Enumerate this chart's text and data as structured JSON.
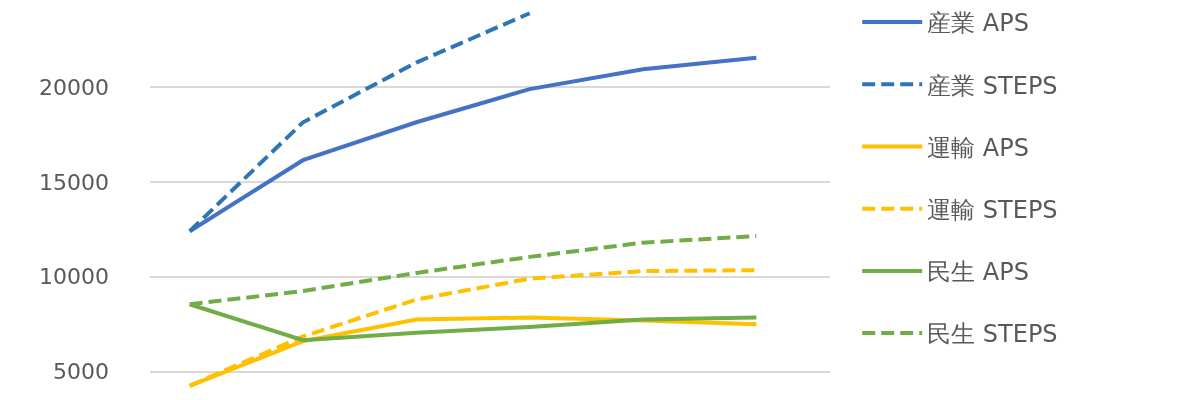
{
  "chart_data": {
    "type": "line",
    "categories": [
      null,
      null,
      null,
      null,
      null,
      null
    ],
    "ylim": [
      3500,
      24600
    ],
    "yticks": [
      5000,
      10000,
      15000,
      20000
    ],
    "grid": "y",
    "legend": "right",
    "tick_labels": "y",
    "marker": "none",
    "series": [
      {
        "name": "産業 APS",
        "color": "#4472c4",
        "line_style": "solid",
        "values": [
          12400,
          16150,
          18150,
          19900,
          20950,
          21550
        ]
      },
      {
        "name": "産業 STEPS",
        "color": "#2e75b6",
        "line_style": "dashed",
        "values": [
          12400,
          18150,
          21300,
          23900,
          null,
          null
        ]
      },
      {
        "name": "運輸 APS",
        "color": "#ffc000",
        "line_style": "solid",
        "values": [
          4250,
          6600,
          7750,
          7850,
          7700,
          7500
        ]
      },
      {
        "name": "運輸 STEPS",
        "color": "#ffc000",
        "line_style": "dashed",
        "values": [
          4250,
          6850,
          8800,
          9900,
          10300,
          10350
        ]
      },
      {
        "name": "民生 APS",
        "color": "#70ad47",
        "line_style": "solid",
        "values": [
          8550,
          6650,
          7050,
          7350,
          7750,
          7850
        ]
      },
      {
        "name": "民生 STEPS",
        "color": "#70ad47",
        "line_style": "dashed",
        "values": [
          8550,
          9250,
          10200,
          11050,
          11800,
          12150
        ]
      }
    ]
  }
}
